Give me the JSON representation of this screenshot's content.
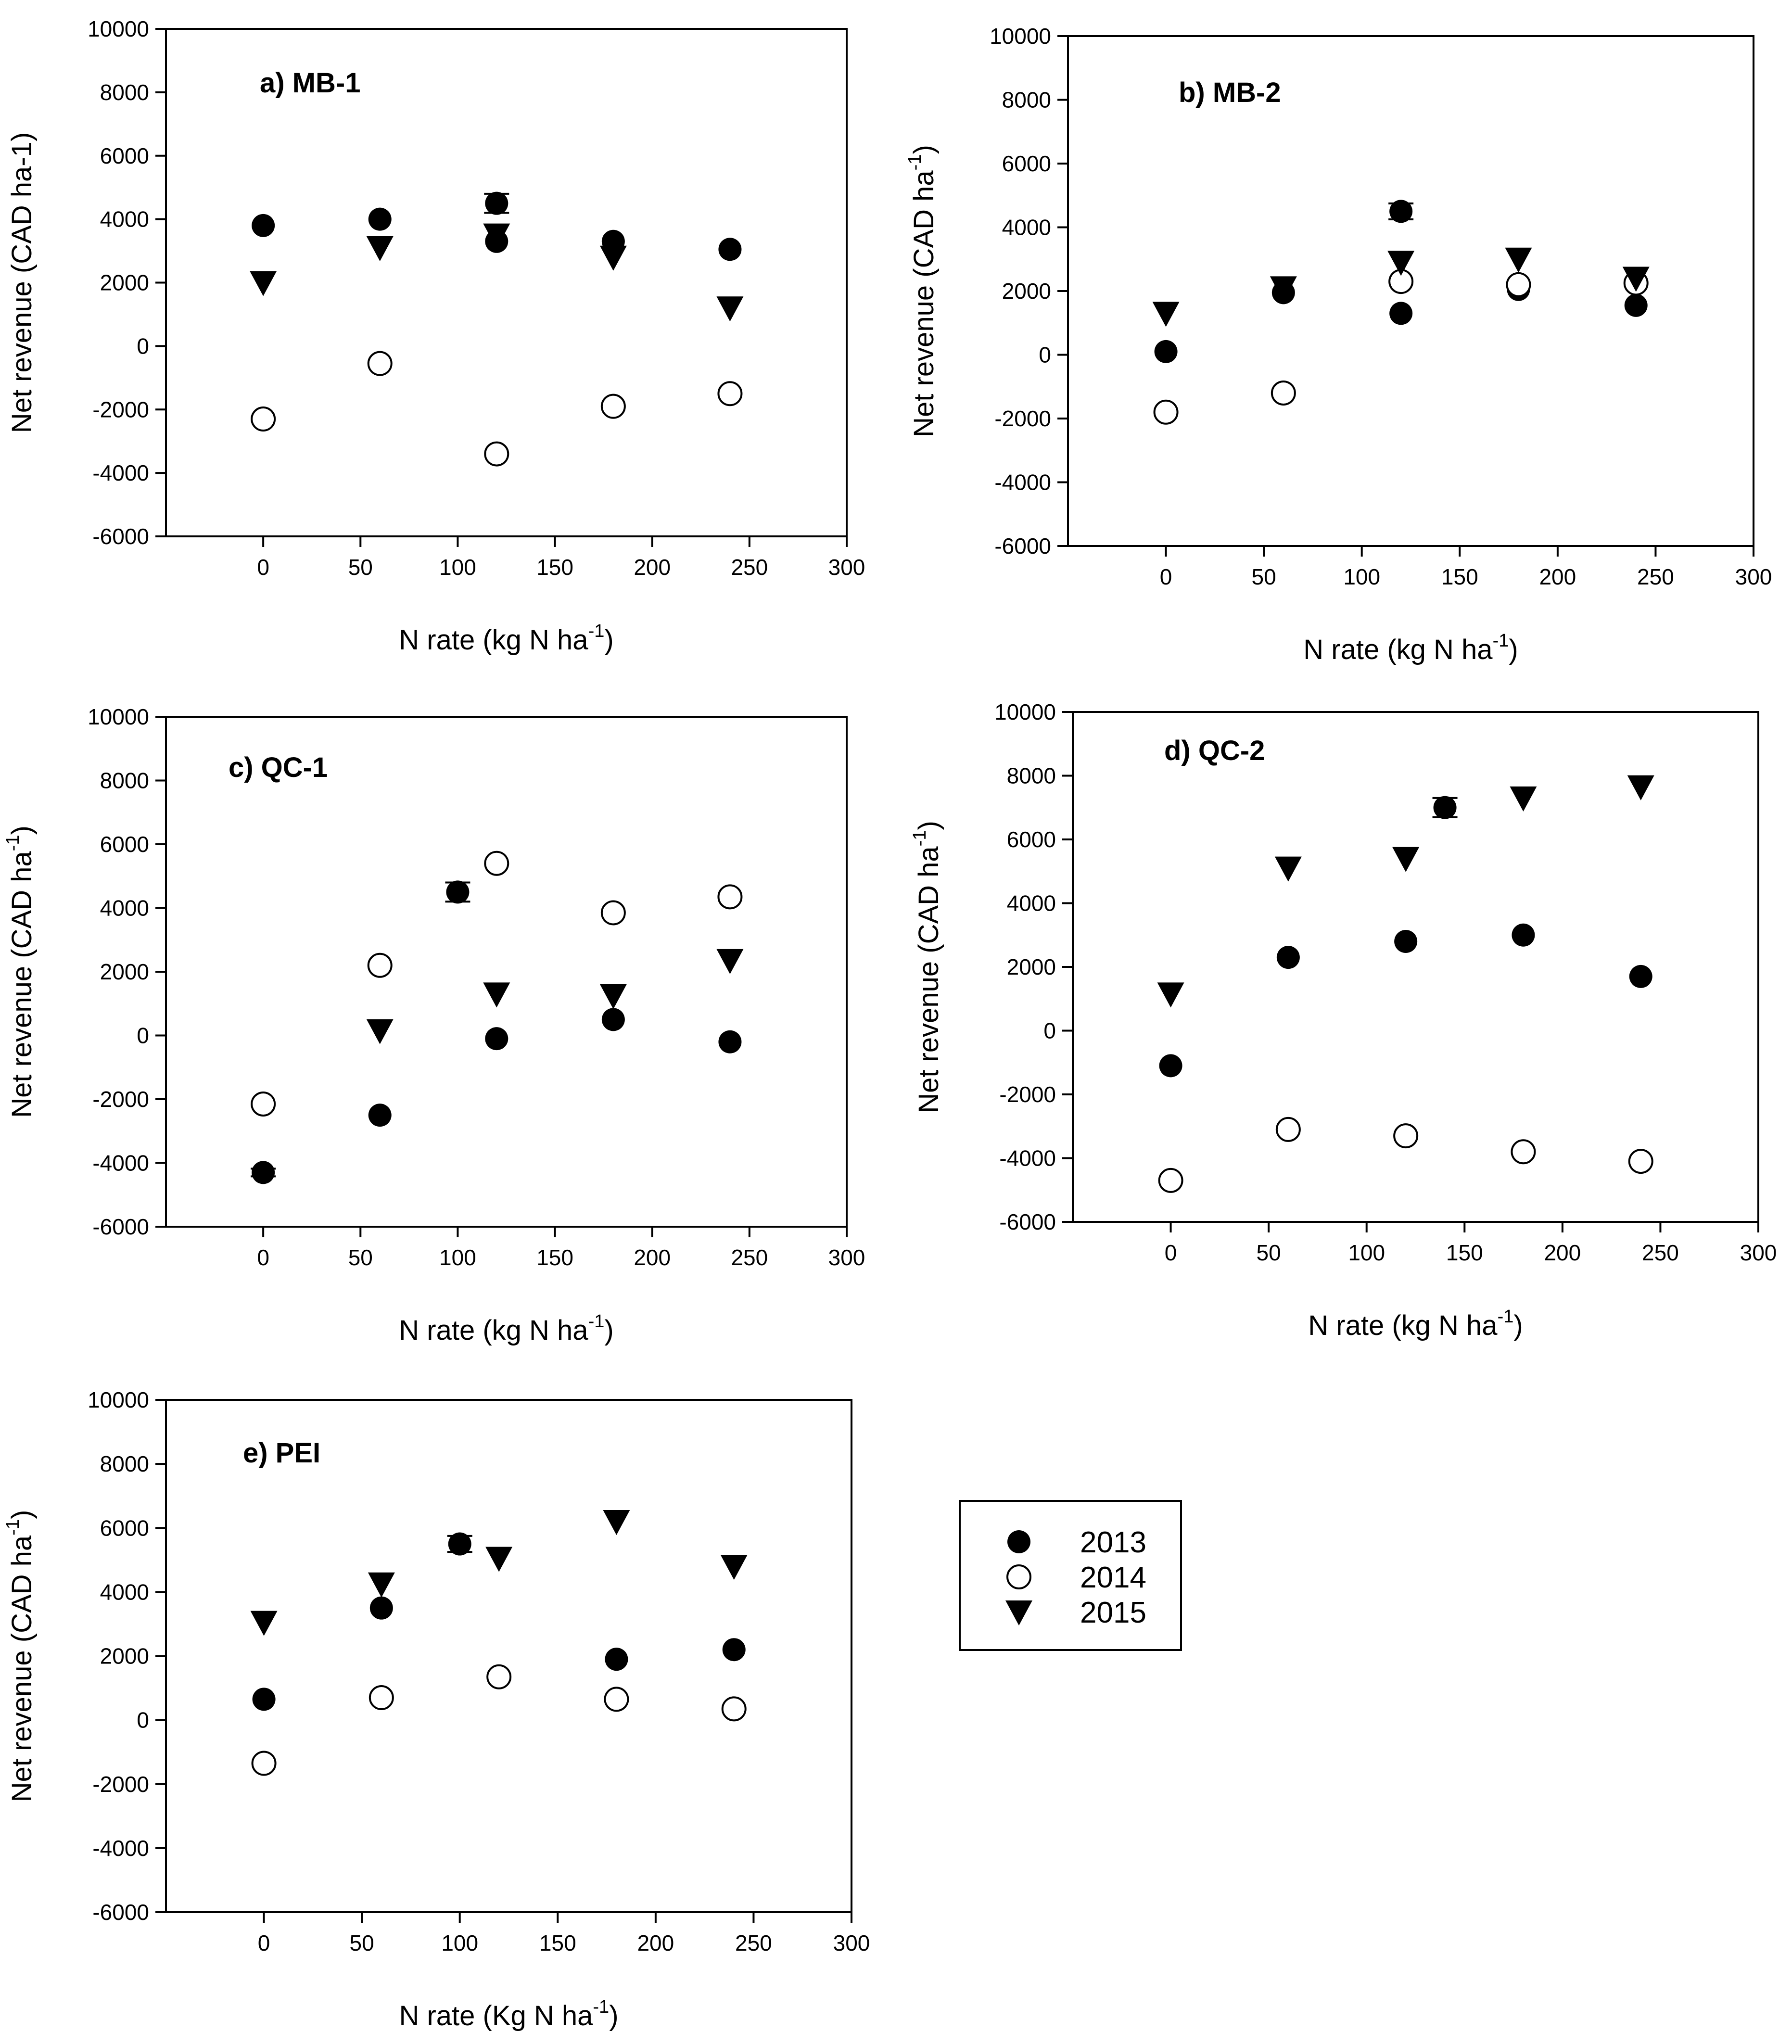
{
  "legend": {
    "entries": [
      {
        "label": "2013",
        "marker": "filled-circle"
      },
      {
        "label": "2014",
        "marker": "open-circle"
      },
      {
        "label": "2015",
        "marker": "filled-triangle-down"
      }
    ]
  },
  "chart_data": [
    {
      "type": "scatter",
      "title": "a) MB-1",
      "ylabel": "Net revenue (CAD ha-1)",
      "ylabel_sup": "",
      "xlabel": "N rate (kg N ha",
      "xlabel_sup": "-1",
      "xlabel_end": ")",
      "xlim": [
        -50,
        300
      ],
      "ylim": [
        -6000,
        10000
      ],
      "xticks": [
        0,
        50,
        100,
        150,
        200,
        250,
        300
      ],
      "yticks": [
        -6000,
        -4000,
        -2000,
        0,
        2000,
        4000,
        6000,
        8000,
        10000
      ],
      "grid": false,
      "series": [
        {
          "name": "2013",
          "marker": "filled-circle",
          "points": [
            [
              0,
              3800
            ],
            [
              60,
              4000
            ],
            [
              120,
              4500
            ],
            [
              120,
              3300
            ],
            [
              180,
              3300
            ],
            [
              240,
              3050
            ]
          ],
          "errors": [
            0,
            0,
            300,
            0,
            0,
            0
          ]
        },
        {
          "name": "2014",
          "marker": "open-circle",
          "points": [
            [
              0,
              -2300
            ],
            [
              60,
              -550
            ],
            [
              120,
              -3400
            ],
            [
              180,
              -1900
            ],
            [
              240,
              -1500
            ]
          ]
        },
        {
          "name": "2015",
          "marker": "filled-triangle-down",
          "points": [
            [
              0,
              2000
            ],
            [
              60,
              3100
            ],
            [
              120,
              3500
            ],
            [
              180,
              2800
            ],
            [
              240,
              1200
            ]
          ]
        }
      ]
    },
    {
      "type": "scatter",
      "title": "b) MB-2",
      "ylabel": "Net revenue (CAD ha",
      "ylabel_sup": "-1",
      "ylabel_end": ")",
      "xlabel": "N rate (kg N ha",
      "xlabel_sup": "-1",
      "xlabel_end": ")",
      "xlim": [
        -50,
        300
      ],
      "ylim": [
        -6000,
        10000
      ],
      "xticks": [
        0,
        50,
        100,
        150,
        200,
        250,
        300
      ],
      "yticks": [
        -6000,
        -4000,
        -2000,
        0,
        2000,
        4000,
        6000,
        8000,
        10000
      ],
      "grid": false,
      "series": [
        {
          "name": "2013",
          "marker": "filled-circle",
          "points": [
            [
              0,
              100
            ],
            [
              60,
              1950
            ],
            [
              120,
              4500
            ],
            [
              120,
              1300
            ],
            [
              180,
              2050
            ],
            [
              240,
              1550
            ]
          ],
          "errors": [
            0,
            0,
            250,
            0,
            0,
            0
          ]
        },
        {
          "name": "2014",
          "marker": "open-circle",
          "points": [
            [
              0,
              -1800
            ],
            [
              60,
              -1200
            ],
            [
              120,
              2300
            ],
            [
              180,
              2200
            ],
            [
              240,
              2250
            ]
          ]
        },
        {
          "name": "2015",
          "marker": "filled-triangle-down",
          "points": [
            [
              0,
              1300
            ],
            [
              60,
              2100
            ],
            [
              120,
              2900
            ],
            [
              180,
              3000
            ],
            [
              240,
              2400
            ]
          ]
        }
      ]
    },
    {
      "type": "scatter",
      "title": "c) QC-1",
      "ylabel": "Net revenue (CAD ha",
      "ylabel_sup": "-1",
      "ylabel_end": ")",
      "xlabel": "N rate (kg N ha",
      "xlabel_sup": "-1",
      "xlabel_end": ")",
      "xlim": [
        -50,
        300
      ],
      "ylim": [
        -6000,
        10000
      ],
      "xticks": [
        0,
        50,
        100,
        150,
        200,
        250,
        300
      ],
      "yticks": [
        -6000,
        -4000,
        -2000,
        0,
        2000,
        4000,
        6000,
        8000,
        10000
      ],
      "grid": false,
      "series": [
        {
          "name": "2013",
          "marker": "filled-circle",
          "points": [
            [
              0,
              -4300
            ],
            [
              60,
              -2500
            ],
            [
              100,
              4500
            ],
            [
              120,
              -100
            ],
            [
              180,
              500
            ],
            [
              240,
              -200
            ]
          ],
          "errors": [
            120,
            0,
            300,
            0,
            0,
            0
          ]
        },
        {
          "name": "2014",
          "marker": "open-circle",
          "points": [
            [
              0,
              -2150
            ],
            [
              60,
              2200
            ],
            [
              120,
              5400
            ],
            [
              180,
              3850
            ],
            [
              240,
              4350
            ]
          ]
        },
        {
          "name": "2015",
          "marker": "filled-triangle-down",
          "points": [
            [
              60,
              150
            ],
            [
              120,
              1300
            ],
            [
              180,
              1250
            ],
            [
              240,
              2350
            ]
          ]
        }
      ]
    },
    {
      "type": "scatter",
      "title": "d) QC-2",
      "ylabel": "Net revenue (CAD ha",
      "ylabel_sup": "-1",
      "ylabel_end": ")",
      "xlabel": "N rate (kg N ha",
      "xlabel_sup": "-1",
      "xlabel_end": ")",
      "xlim": [
        -50,
        300
      ],
      "ylim": [
        -6000,
        10000
      ],
      "xticks": [
        0,
        50,
        100,
        150,
        200,
        250,
        300
      ],
      "yticks": [
        -6000,
        -4000,
        -2000,
        0,
        2000,
        4000,
        6000,
        8000,
        10000
      ],
      "grid": false,
      "series": [
        {
          "name": "2013",
          "marker": "filled-circle",
          "points": [
            [
              0,
              -1100
            ],
            [
              60,
              2300
            ],
            [
              120,
              2800
            ],
            [
              140,
              7000
            ],
            [
              180,
              3000
            ],
            [
              240,
              1700
            ]
          ],
          "errors": [
            0,
            0,
            0,
            300,
            0,
            0
          ]
        },
        {
          "name": "2014",
          "marker": "open-circle",
          "points": [
            [
              0,
              -4700
            ],
            [
              60,
              -3100
            ],
            [
              120,
              -3300
            ],
            [
              180,
              -3800
            ],
            [
              240,
              -4100
            ]
          ]
        },
        {
          "name": "2015",
          "marker": "filled-triangle-down",
          "points": [
            [
              0,
              1150
            ],
            [
              60,
              5100
            ],
            [
              120,
              5400
            ],
            [
              180,
              7300
            ],
            [
              240,
              7650
            ]
          ]
        }
      ]
    },
    {
      "type": "scatter",
      "title": "e) PEI",
      "ylabel": "Net revenue (CAD ha",
      "ylabel_sup": "-1",
      "ylabel_end": ")",
      "xlabel": "N rate (Kg N ha",
      "xlabel_sup": "-1",
      "xlabel_end": ")",
      "xlim": [
        -50,
        300
      ],
      "ylim": [
        -6000,
        10000
      ],
      "xticks": [
        0,
        50,
        100,
        150,
        200,
        250,
        300
      ],
      "yticks": [
        -6000,
        -4000,
        -2000,
        0,
        2000,
        4000,
        6000,
        8000,
        10000
      ],
      "grid": false,
      "series": [
        {
          "name": "2013",
          "marker": "filled-circle",
          "points": [
            [
              0,
              650
            ],
            [
              60,
              3500
            ],
            [
              100,
              5500
            ],
            [
              180,
              1900
            ],
            [
              240,
              2200
            ]
          ],
          "errors": [
            0,
            0,
            250,
            0,
            0
          ]
        },
        {
          "name": "2014",
          "marker": "open-circle",
          "points": [
            [
              0,
              -1350
            ],
            [
              60,
              700
            ],
            [
              120,
              1350
            ],
            [
              180,
              650
            ],
            [
              240,
              350
            ]
          ]
        },
        {
          "name": "2015",
          "marker": "filled-triangle-down",
          "points": [
            [
              0,
              3050
            ],
            [
              60,
              4250
            ],
            [
              120,
              5050
            ],
            [
              180,
              6200
            ],
            [
              240,
              4800
            ]
          ]
        }
      ]
    }
  ]
}
